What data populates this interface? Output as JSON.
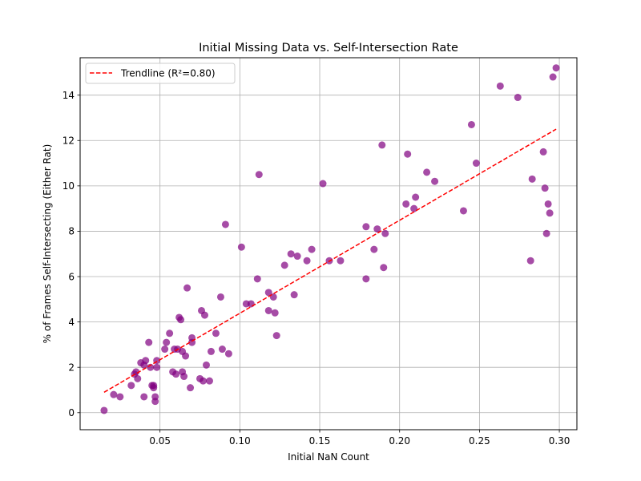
{
  "chart_data": {
    "type": "scatter",
    "title": "Initial Missing Data vs. Self-Intersection Rate",
    "xlabel": "Initial NaN Count",
    "ylabel": "% of Frames Self-Intersecting (Either Rat)",
    "xlim": [
      0.0,
      0.311
    ],
    "ylim": [
      -0.75,
      15.65
    ],
    "x_ticks": [
      0.05,
      0.1,
      0.15,
      0.2,
      0.25,
      0.3
    ],
    "x_tick_labels": [
      "0.05",
      "0.10",
      "0.15",
      "0.20",
      "0.25",
      "0.30"
    ],
    "y_ticks": [
      0,
      2,
      4,
      6,
      8,
      10,
      12,
      14
    ],
    "y_tick_labels": [
      "0",
      "2",
      "4",
      "6",
      "8",
      "10",
      "12",
      "14"
    ],
    "grid": true,
    "legend": {
      "position": "top-left",
      "entries": [
        "Trendline (R²=0.80)"
      ]
    },
    "colors": {
      "points": "#800080",
      "trendline": "#ff0000",
      "grid": "#b0b0b0"
    },
    "points": [
      [
        0.015,
        0.1
      ],
      [
        0.021,
        0.8
      ],
      [
        0.025,
        0.7
      ],
      [
        0.032,
        1.2
      ],
      [
        0.034,
        1.7
      ],
      [
        0.035,
        1.8
      ],
      [
        0.036,
        1.5
      ],
      [
        0.038,
        2.2
      ],
      [
        0.04,
        0.7
      ],
      [
        0.04,
        2.1
      ],
      [
        0.041,
        2.3
      ],
      [
        0.043,
        3.1
      ],
      [
        0.044,
        2.0
      ],
      [
        0.045,
        1.2
      ],
      [
        0.046,
        1.1
      ],
      [
        0.046,
        1.2
      ],
      [
        0.047,
        0.5
      ],
      [
        0.047,
        0.7
      ],
      [
        0.048,
        2.3
      ],
      [
        0.048,
        2.0
      ],
      [
        0.053,
        2.8
      ],
      [
        0.054,
        3.1
      ],
      [
        0.056,
        3.5
      ],
      [
        0.058,
        1.8
      ],
      [
        0.059,
        2.8
      ],
      [
        0.06,
        1.7
      ],
      [
        0.061,
        2.8
      ],
      [
        0.062,
        4.2
      ],
      [
        0.063,
        4.1
      ],
      [
        0.064,
        1.8
      ],
      [
        0.064,
        2.7
      ],
      [
        0.065,
        1.6
      ],
      [
        0.066,
        2.5
      ],
      [
        0.067,
        5.5
      ],
      [
        0.069,
        1.1
      ],
      [
        0.07,
        3.3
      ],
      [
        0.07,
        3.1
      ],
      [
        0.075,
        1.5
      ],
      [
        0.076,
        4.5
      ],
      [
        0.077,
        1.4
      ],
      [
        0.078,
        4.3
      ],
      [
        0.079,
        2.1
      ],
      [
        0.081,
        1.4
      ],
      [
        0.082,
        2.7
      ],
      [
        0.085,
        3.5
      ],
      [
        0.088,
        5.1
      ],
      [
        0.089,
        2.8
      ],
      [
        0.091,
        8.3
      ],
      [
        0.093,
        2.6
      ],
      [
        0.101,
        7.3
      ],
      [
        0.104,
        4.8
      ],
      [
        0.107,
        4.8
      ],
      [
        0.111,
        5.9
      ],
      [
        0.112,
        10.5
      ],
      [
        0.118,
        4.5
      ],
      [
        0.118,
        5.3
      ],
      [
        0.121,
        5.1
      ],
      [
        0.122,
        4.4
      ],
      [
        0.123,
        3.4
      ],
      [
        0.128,
        6.5
      ],
      [
        0.132,
        7.0
      ],
      [
        0.134,
        5.2
      ],
      [
        0.136,
        6.9
      ],
      [
        0.142,
        6.7
      ],
      [
        0.145,
        7.2
      ],
      [
        0.152,
        10.1
      ],
      [
        0.156,
        6.7
      ],
      [
        0.163,
        6.7
      ],
      [
        0.179,
        8.2
      ],
      [
        0.179,
        5.9
      ],
      [
        0.184,
        7.2
      ],
      [
        0.186,
        8.1
      ],
      [
        0.189,
        11.8
      ],
      [
        0.19,
        6.4
      ],
      [
        0.191,
        7.9
      ],
      [
        0.204,
        9.2
      ],
      [
        0.205,
        11.4
      ],
      [
        0.209,
        9.0
      ],
      [
        0.21,
        9.5
      ],
      [
        0.217,
        10.6
      ],
      [
        0.222,
        10.2
      ],
      [
        0.24,
        8.9
      ],
      [
        0.245,
        12.7
      ],
      [
        0.248,
        11.0
      ],
      [
        0.263,
        14.4
      ],
      [
        0.274,
        13.9
      ],
      [
        0.282,
        6.7
      ],
      [
        0.283,
        10.3
      ],
      [
        0.29,
        11.5
      ],
      [
        0.291,
        9.9
      ],
      [
        0.292,
        7.9
      ],
      [
        0.293,
        9.2
      ],
      [
        0.294,
        8.8
      ],
      [
        0.296,
        14.8
      ],
      [
        0.298,
        15.2
      ]
    ],
    "trendline": {
      "label": "Trendline (R²=0.80)",
      "x": [
        0.015,
        0.298
      ],
      "y": [
        0.9,
        12.5
      ]
    }
  }
}
